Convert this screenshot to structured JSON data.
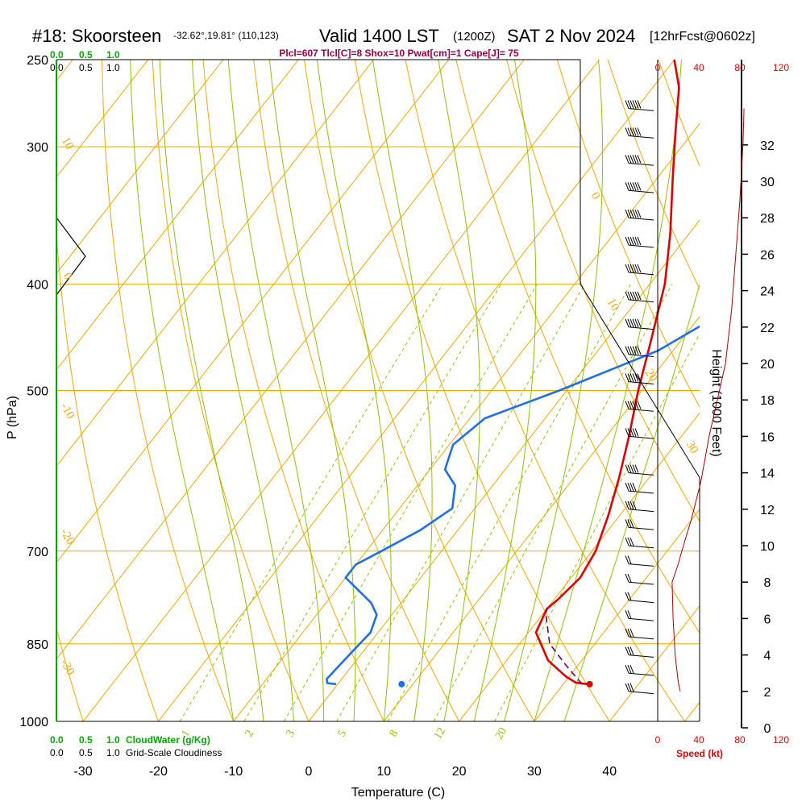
{
  "header": {
    "station": "#18: Skoorsteen",
    "coords": "-32.62°,19.81° (110,123)",
    "valid": "Valid 1400 LST",
    "zulu": "(1200Z)",
    "date": "SAT 2 Nov 2024",
    "forecast": "[12hrFcst@0602z]",
    "indices": "Plcl=607 Tlcl[C]=8 Shox=10 Pwat[cm]=1 Cape[J]= 75"
  },
  "colors": {
    "temperature": "#e00000",
    "dewpoint": "#1f6fe8",
    "isobar": "#f0a800",
    "dry_adiabat": "#f0a800",
    "moist_adiabat": "#8cc300",
    "mixing_ratio": "#8cc300",
    "parcel": "#660066",
    "cloud": "#00aa00",
    "indices": "#990044",
    "speed": "#e00000"
  },
  "chart_data": {
    "type": "line",
    "xlabel": "Temperature (C)",
    "ylabel": "P (hPa)",
    "y2label": "Height (1000 Feet)",
    "x_ticks": [
      "-30",
      "-20",
      "-10",
      "0",
      "10",
      "20",
      "30",
      "40"
    ],
    "p_ticks": [
      "250",
      "300",
      "400",
      "500",
      "700",
      "850",
      "1000"
    ],
    "height_ticks": [
      "0",
      "2",
      "4",
      "6",
      "8",
      "10",
      "12",
      "14",
      "16",
      "18",
      "20",
      "22",
      "24",
      "26",
      "28",
      "30",
      "32"
    ],
    "xlim": [
      -34,
      36
    ],
    "ylim": [
      1000,
      250
    ],
    "series": [
      {
        "key": "temperature",
        "points": [
          [
            33.2,
            925
          ],
          [
            31.5,
            922
          ],
          [
            29.5,
            910
          ],
          [
            25.5,
            880
          ],
          [
            21,
            830
          ],
          [
            20,
            790
          ],
          [
            20.5,
            775
          ],
          [
            21.2,
            740
          ],
          [
            20.5,
            700
          ],
          [
            18.5,
            650
          ],
          [
            16,
            600
          ],
          [
            13,
            550
          ],
          [
            9.5,
            500
          ],
          [
            6,
            450
          ],
          [
            2,
            400
          ],
          [
            -2.5,
            360
          ],
          [
            -8,
            320
          ],
          [
            -12.5,
            290
          ],
          [
            -16.5,
            265
          ],
          [
            -20.5,
            248
          ]
        ]
      },
      {
        "key": "dewpoint",
        "points": [
          [
            -0.2,
            925
          ],
          [
            -1.5,
            923
          ],
          [
            -2,
            915
          ],
          [
            -1.5,
            870
          ],
          [
            -1,
            830
          ],
          [
            -2,
            800
          ],
          [
            -4,
            780
          ],
          [
            -10,
            740
          ],
          [
            -10,
            720
          ],
          [
            -8,
            700
          ],
          [
            -5,
            670
          ],
          [
            -3,
            640
          ],
          [
            -5,
            610
          ],
          [
            -8,
            590
          ],
          [
            -9.5,
            560
          ],
          [
            -8,
            530
          ],
          [
            -1,
            500
          ],
          [
            8,
            460
          ],
          [
            12,
            430
          ],
          [
            11,
            390
          ],
          [
            8,
            350
          ],
          [
            1,
            310
          ],
          [
            -4,
            290
          ],
          [
            -9,
            265
          ],
          [
            -13,
            248
          ]
        ]
      },
      {
        "key": "parcel",
        "points": [
          [
            32.5,
            925
          ],
          [
            28.5,
            890
          ],
          [
            24,
            850
          ],
          [
            20.5,
            800
          ],
          [
            20,
            790
          ]
        ]
      }
    ],
    "surface": {
      "temperature": 33.5,
      "dewpoint": 8.5,
      "pressure": 925
    },
    "isotherm_labels": [
      "10",
      "0",
      "-10",
      "-20",
      "-30",
      "0",
      "10",
      "20",
      "30"
    ],
    "mixing_ratio_labels": [
      "1",
      "2",
      "3",
      "5",
      "8",
      "12",
      "20"
    ],
    "cloud_water": {
      "label": "CloudWater (g/Kg)",
      "ticks": [
        "0.0",
        "0.5",
        "1.0"
      ]
    },
    "cloudiness": {
      "label": "Grid-Scale Cloudiness",
      "ticks": [
        "0.0",
        "0.5",
        "1.0"
      ]
    },
    "wind_speed": {
      "label": "Speed (kt)",
      "ticks": [
        "0",
        "40",
        "80",
        "120"
      ],
      "profile": [
        [
          22,
          2
        ],
        [
          20,
          2.5
        ],
        [
          17,
          4
        ],
        [
          15,
          6
        ],
        [
          14,
          8
        ],
        [
          20,
          9
        ],
        [
          25,
          10
        ],
        [
          33,
          11.5
        ],
        [
          42,
          13.5
        ],
        [
          50,
          16
        ],
        [
          58,
          18
        ],
        [
          66,
          20
        ],
        [
          72,
          23
        ],
        [
          76,
          26
        ],
        [
          80,
          29
        ],
        [
          83,
          32
        ],
        [
          84,
          34
        ]
      ]
    },
    "wind_barbs": [
      {
        "height": 2,
        "dir": 315,
        "spd": 30
      },
      {
        "height": 3,
        "dir": 315,
        "spd": 30
      },
      {
        "height": 4,
        "dir": 310,
        "spd": 25
      },
      {
        "height": 5,
        "dir": 305,
        "spd": 25
      },
      {
        "height": 6,
        "dir": 305,
        "spd": 20
      },
      {
        "height": 7,
        "dir": 300,
        "spd": 20
      },
      {
        "height": 8,
        "dir": 295,
        "spd": 15
      },
      {
        "height": 9,
        "dir": 295,
        "spd": 20
      },
      {
        "height": 10,
        "dir": 290,
        "spd": 25
      },
      {
        "height": 11,
        "dir": 290,
        "spd": 30
      },
      {
        "height": 12,
        "dir": 285,
        "spd": 35
      },
      {
        "height": 13,
        "dir": 285,
        "spd": 40
      },
      {
        "height": 14,
        "dir": 280,
        "spd": 45
      },
      {
        "height": 16,
        "dir": 275,
        "spd": 50
      },
      {
        "height": 17.5,
        "dir": 275,
        "spd": 55
      },
      {
        "height": 19,
        "dir": 270,
        "spd": 60
      },
      {
        "height": 20.5,
        "dir": 270,
        "spd": 65
      },
      {
        "height": 22,
        "dir": 270,
        "spd": 70
      },
      {
        "height": 23.5,
        "dir": 270,
        "spd": 75
      },
      {
        "height": 25,
        "dir": 270,
        "spd": 75
      },
      {
        "height": 26.5,
        "dir": 270,
        "spd": 80
      },
      {
        "height": 28,
        "dir": 270,
        "spd": 80
      },
      {
        "height": 29.5,
        "dir": 270,
        "spd": 80
      },
      {
        "height": 31,
        "dir": 270,
        "spd": 80
      },
      {
        "height": 32.5,
        "dir": 270,
        "spd": 80
      },
      {
        "height": 34,
        "dir": 270,
        "spd": 80
      }
    ]
  }
}
